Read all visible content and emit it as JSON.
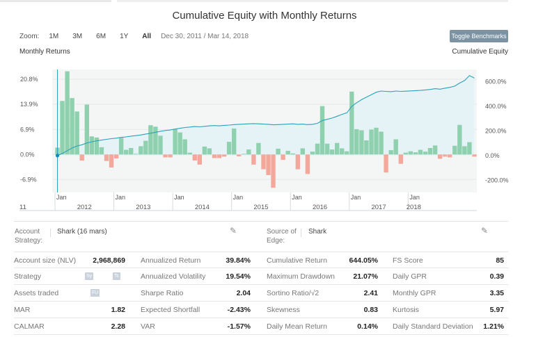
{
  "title": "Cumulative Equity with Monthly Returns",
  "zoom": {
    "label": "Zoom:",
    "buttons": [
      "1M",
      "3M",
      "6M",
      "1Y",
      "All"
    ],
    "active": "All",
    "range": "Dec 30, 2011 / Mar 14, 2018"
  },
  "toggle_label": "Toggle Benchmarks",
  "left_axis_title": "Monthly Returns",
  "right_axis_title": "Cumulative Equity",
  "chart_data": {
    "type": "bar",
    "title": "Cumulative Equity with Monthly Returns",
    "series": [
      {
        "name": "Monthly Returns",
        "type": "bar",
        "values": [
          1.9,
          14.8,
          23.0,
          15.6,
          11.9,
          -1.7,
          13.8,
          5.0,
          4.7,
          2.0,
          -1.8,
          -3.6,
          -1.1,
          4.6,
          1.3,
          1.8,
          0.2,
          2.3,
          3.8,
          8.1,
          7.7,
          5.2,
          -0.8,
          -0.8,
          7.0,
          6.1,
          4.2,
          0.5,
          -1.7,
          -2.8,
          2.2,
          1.7,
          -1.0,
          -1.0,
          -0.6,
          3.5,
          7.2,
          -0.5,
          0.2,
          1.4,
          -2.8,
          3.2,
          -4.1,
          -5.7,
          -9.2,
          1.6,
          -1.5,
          1.0,
          0.3,
          -4.1,
          1.7,
          -5.4,
          0.8,
          3.0,
          13.4,
          3.0,
          1.4,
          3.2,
          1.7,
          0.9,
          17.4,
          7.0,
          6.7,
          3.9,
          6.9,
          7.4,
          6.3,
          -5.0,
          1.2,
          4.2,
          -2.6,
          0.5,
          0.9,
          0.6,
          1.3,
          0.8,
          1.8,
          2.5,
          -1.2,
          -0.6,
          -0.8,
          2.4,
          8.2,
          2.3,
          3.4,
          -0.6
        ]
      },
      {
        "name": "Cumulative Equity",
        "type": "area",
        "values": [
          0,
          18,
          40,
          62,
          78,
          88,
          102,
          112,
          120,
          126,
          132,
          138,
          142,
          148,
          152,
          158,
          162,
          168,
          175,
          182,
          190,
          198,
          204,
          208,
          216,
          222,
          228,
          232,
          236,
          234,
          238,
          242,
          244,
          242,
          246,
          248,
          252,
          254,
          256,
          258,
          260,
          258,
          256,
          254,
          250,
          252,
          254,
          256,
          258,
          254,
          256,
          252,
          254,
          262,
          285,
          295,
          305,
          320,
          335,
          348,
          400,
          430,
          455,
          475,
          495,
          515,
          525,
          522,
          520,
          525,
          522,
          524,
          526,
          528,
          530,
          534,
          538,
          544,
          540,
          548,
          555,
          565,
          590,
          610,
          650,
          630
        ]
      }
    ],
    "left_axis": {
      "label": "Monthly Returns",
      "ticks": [
        "20.8%",
        "13.9%",
        "6.9%",
        "0.0%",
        "-6.9%"
      ],
      "range": [
        -10.5,
        23.5
      ]
    },
    "right_axis": {
      "label": "Cumulative Equity",
      "ticks": [
        "600.0%",
        "400.0%",
        "200.0%",
        "0.0%",
        "-200.0%"
      ],
      "range": [
        -300,
        700
      ]
    },
    "x_axis": {
      "month_ticks": [
        "Jan",
        "Jan",
        "Jan",
        "Jan",
        "Jan",
        "Jan",
        "Jan"
      ],
      "years": [
        "2012",
        "2013",
        "2014",
        "2015",
        "2016",
        "2017",
        "2018"
      ],
      "left_fragment": "11"
    },
    "grid": true
  },
  "account": {
    "label_line1": "Account",
    "label_line2": "Strategy:",
    "value": "Shark (16 mars)",
    "source_line1": "Source of",
    "source_line2": "Edge:",
    "source_value": "Shark"
  },
  "stats": [
    [
      {
        "k": "Account size (NLV)",
        "v": "2,968,869"
      },
      {
        "k": "Annualized Return",
        "v": "39.84%"
      },
      {
        "k": "Cumulative Return",
        "v": "644.05%"
      },
      {
        "k": "FS Score",
        "v": "85"
      }
    ],
    [
      {
        "k": "Strategy",
        "v": "",
        "badges": [
          "Sy",
          "Tc"
        ]
      },
      {
        "k": "Annualized Volatility",
        "v": "19.54%"
      },
      {
        "k": "Maximum Drawdown",
        "v": "21.07%"
      },
      {
        "k": "Daily GPR",
        "v": "0.39"
      }
    ],
    [
      {
        "k": "Assets traded",
        "v": "",
        "badges": [
          "FU"
        ]
      },
      {
        "k": "Sharpe Ratio",
        "v": "2.04"
      },
      {
        "k": "Sortino Ratio/√2",
        "v": "2.41"
      },
      {
        "k": "Monthly GPR",
        "v": "3.35"
      }
    ],
    [
      {
        "k": "MAR",
        "v": "1.82"
      },
      {
        "k": "Expected Shortfall",
        "v": "-2.43%"
      },
      {
        "k": "Skewness",
        "v": "0.83"
      },
      {
        "k": "Kurtosis",
        "v": "5.97"
      }
    ],
    [
      {
        "k": "CALMAR",
        "v": "2.28"
      },
      {
        "k": "VAR",
        "v": "-1.57%"
      },
      {
        "k": "Daily Mean Return",
        "v": "0.14%"
      },
      {
        "k": "Daily Standard Deviation",
        "v": "1.21%"
      }
    ]
  ],
  "colors": {
    "positive_bar": "#8fd1ae",
    "negative_bar": "#f3a89b",
    "equity_line": "#2aa0b8",
    "equity_fill": "#e3f3f7",
    "plot_bg": "#f4f6f6",
    "toggle_bg": "#7c93a4"
  }
}
